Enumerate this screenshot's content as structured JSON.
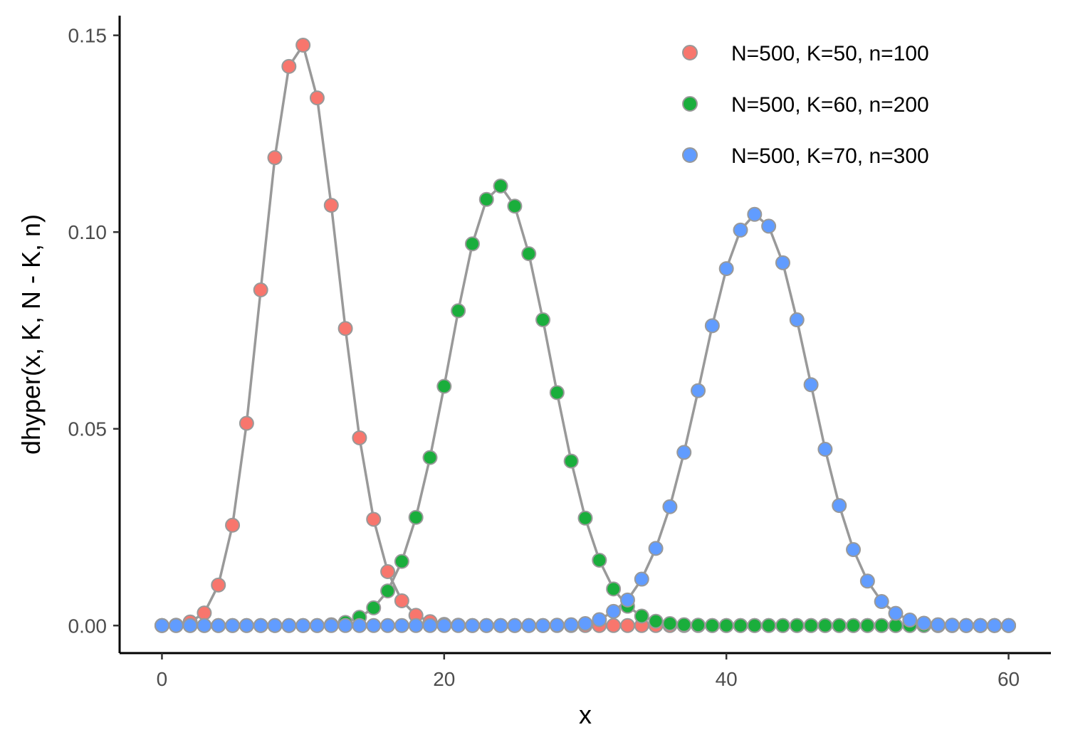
{
  "chart_data": {
    "type": "line",
    "title": "",
    "xlabel": "x",
    "ylabel": "dhyper(x, K, N - K, n)",
    "xlim": [
      -3,
      63
    ],
    "ylim": [
      -0.007,
      0.155
    ],
    "x_ticks": [
      0,
      20,
      40,
      60
    ],
    "x_tick_labels": [
      "0",
      "20",
      "40",
      "60"
    ],
    "y_ticks": [
      0,
      0.05,
      0.1,
      0.15
    ],
    "y_tick_labels": [
      "0.00",
      "0.05",
      "0.10",
      "0.15"
    ],
    "grid": false,
    "legend_position": "top-right",
    "line_color": "#999999",
    "x": [
      0,
      1,
      2,
      3,
      4,
      5,
      6,
      7,
      8,
      9,
      10,
      11,
      12,
      13,
      14,
      15,
      16,
      17,
      18,
      19,
      20,
      21,
      22,
      23,
      24,
      25,
      26,
      27,
      28,
      29,
      30,
      31,
      32,
      33,
      34,
      35,
      36,
      37,
      38,
      39,
      40,
      41,
      42,
      43,
      44,
      45,
      46,
      47,
      48,
      49,
      50,
      51,
      52,
      53,
      54,
      55,
      56,
      57,
      58,
      59,
      60
    ],
    "series": [
      {
        "name": "N=500, K=50, n=100",
        "color": "#F8766D",
        "values": [
          0,
          0.0001,
          0.0009,
          0.0032,
          0.0103,
          0.0255,
          0.0514,
          0.0853,
          0.1189,
          0.1421,
          0.1475,
          0.1341,
          0.1068,
          0.0755,
          0.0477,
          0.027,
          0.0137,
          0.0063,
          0.0026,
          0.001,
          0.0003,
          0.0001,
          0,
          0,
          0,
          0,
          0,
          0,
          0,
          0,
          0,
          0,
          0,
          0,
          0,
          0,
          0,
          0,
          0,
          0,
          0,
          0,
          0,
          0,
          0,
          0,
          0,
          0,
          0,
          0,
          0,
          0,
          0,
          0,
          0,
          0,
          0,
          0,
          0,
          0,
          0
        ]
      },
      {
        "name": "N=500, K=60, n=200",
        "color": "#1AAE3C",
        "values": [
          0,
          0,
          0,
          0,
          0,
          0,
          0,
          0,
          0,
          0,
          0,
          0,
          0.0002,
          0.0008,
          0.0021,
          0.0045,
          0.0088,
          0.0163,
          0.0275,
          0.0427,
          0.0608,
          0.08,
          0.097,
          0.1083,
          0.1117,
          0.1066,
          0.0945,
          0.0777,
          0.0592,
          0.0418,
          0.0273,
          0.0166,
          0.0093,
          0.0049,
          0.0024,
          0.0011,
          0.0005,
          0.0002,
          0.0001,
          0,
          0,
          0,
          0,
          0,
          0,
          0,
          0,
          0,
          0,
          0,
          0,
          0,
          0,
          0,
          0,
          0,
          0,
          0,
          0,
          0,
          0
        ]
      },
      {
        "name": "N=500, K=70, n=300",
        "color": "#619CFF",
        "values": [
          0,
          0,
          0,
          0,
          0,
          0,
          0,
          0,
          0,
          0,
          0,
          0,
          0,
          0,
          0,
          0,
          0,
          0,
          0,
          0,
          0,
          0,
          0,
          0,
          0,
          0,
          0,
          0,
          0.0001,
          0.0002,
          0.0005,
          0.0015,
          0.0036,
          0.0065,
          0.0118,
          0.0196,
          0.0302,
          0.044,
          0.0597,
          0.0762,
          0.0907,
          0.1005,
          0.1045,
          0.1015,
          0.0922,
          0.0777,
          0.0612,
          0.0448,
          0.0305,
          0.0193,
          0.0113,
          0.0061,
          0.0031,
          0.0014,
          0.0006,
          0.0002,
          0.0001,
          0,
          0,
          0,
          0
        ]
      }
    ]
  }
}
